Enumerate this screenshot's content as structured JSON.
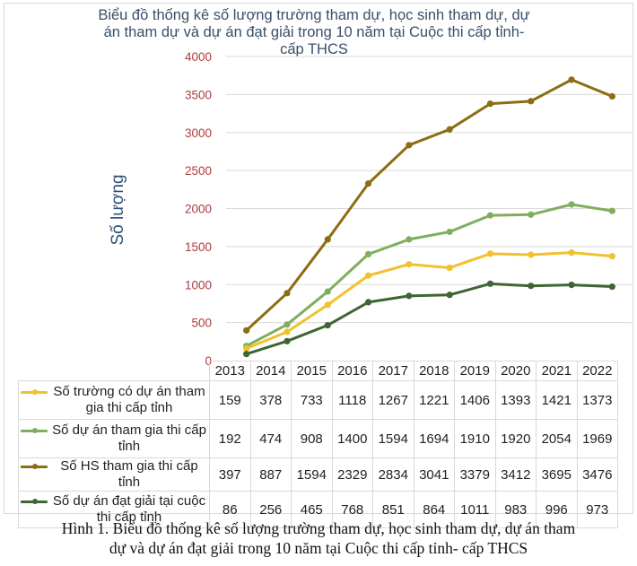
{
  "chart_data": {
    "type": "line",
    "title": "Biểu đồ thống kê số lượng trường tham dự, học sinh tham dự, dự án tham dự và dự án đạt giải trong 10 năm tại Cuộc thi cấp tỉnh- cấp THCS",
    "title_lines": [
      "Biểu đồ thống kê số lượng trường tham dự, học sinh tham dự, dự",
      "án tham dự và dự án đạt giải trong 10 năm tại Cuộc thi cấp tỉnh-",
      "cấp THCS"
    ],
    "xlabel": "",
    "ylabel": "Số lượng",
    "ylim": [
      0,
      4000
    ],
    "yticks": [
      0,
      500,
      1000,
      1500,
      2000,
      2500,
      3000,
      3500,
      4000
    ],
    "grid": true,
    "legend": "data-table-below",
    "categories": [
      "2013",
      "2014",
      "2015",
      "2016",
      "2017",
      "2018",
      "2019",
      "2020",
      "2021",
      "2022"
    ],
    "series": [
      {
        "name": "Số trường có dự án tham gia thi cấp tỉnh",
        "name_lines": [
          "Số trường có dự án tham",
          "gia thi cấp tỉnh"
        ],
        "color": "#F2C12E",
        "values": [
          159,
          378,
          733,
          1118,
          1267,
          1221,
          1406,
          1393,
          1421,
          1373
        ]
      },
      {
        "name": "Số dự án tham gia thi cấp tỉnh",
        "name_lines": [
          "Số dự án tham gia thi cấp",
          "tỉnh"
        ],
        "color": "#7FAE5C",
        "values": [
          192,
          474,
          908,
          1400,
          1594,
          1694,
          1910,
          1920,
          2054,
          1969
        ]
      },
      {
        "name": "Số HS tham gia thi cấp tỉnh",
        "name_lines": [
          "Số HS tham gia thi cấp tỉnh"
        ],
        "color": "#8C6D12",
        "values": [
          397,
          887,
          1594,
          2329,
          2834,
          3041,
          3379,
          3412,
          3695,
          3476
        ]
      },
      {
        "name": "Số dự án đạt giải tại cuộc thi cấp tỉnh",
        "name_lines": [
          "Số dự án đạt giải tại cuộc",
          "thi cấp tỉnh"
        ],
        "color": "#3E6532",
        "values": [
          86,
          256,
          465,
          768,
          851,
          864,
          1011,
          983,
          996,
          973
        ]
      }
    ],
    "colors": {
      "axis_tick_text": "#B03A3A",
      "title_text": "#3A4F6B",
      "ylabel_text": "#2E5277",
      "gridline": "#D9D9D9"
    }
  },
  "caption": {
    "lines": [
      "Hình 1. Biểu đồ thống kê số lượng trường tham dự, học sinh tham dự, dự án tham",
      "dự và dự án đạt giải trong 10 năm tại Cuộc thi cấp tỉnh- cấp THCS"
    ]
  }
}
